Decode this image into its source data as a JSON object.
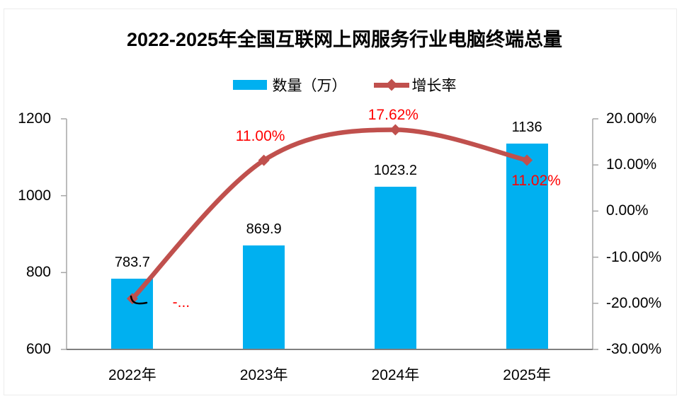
{
  "chart_data": {
    "type": "combo-bar-line",
    "title": "2022-2025年全国互联网上网服务行业电脑终端总量",
    "categories": [
      "2022年",
      "2023年",
      "2024年",
      "2025年"
    ],
    "series": [
      {
        "name": "数量（万）",
        "type": "bar",
        "axis": "left",
        "color": "#00B0F0",
        "values": [
          783.7,
          869.9,
          1023.2,
          1136
        ],
        "data_labels": [
          "783.7",
          "869.9",
          "1023.2",
          "1136"
        ],
        "data_label_color": "#000000"
      },
      {
        "name": "增长率",
        "type": "line",
        "axis": "right",
        "color": "#C0504D",
        "smooth": true,
        "marker": "diamond",
        "values": [
          -19.0,
          11.0,
          17.62,
          11.02
        ],
        "data_labels": [
          "-...",
          "11.00%",
          "17.62%",
          "11.02%"
        ],
        "data_label_color": "#FF0000"
      }
    ],
    "axes": {
      "left": {
        "min": 600,
        "max": 1200,
        "ticks": [
          "1200",
          "1000",
          "800",
          "600"
        ]
      },
      "right": {
        "min": -30,
        "max": 20,
        "ticks": [
          "20.00%",
          "10.00%",
          "0.00%",
          "-10.00%",
          "-20.00%",
          "-30.00%"
        ]
      }
    },
    "grid": false,
    "legend_position": "top"
  }
}
